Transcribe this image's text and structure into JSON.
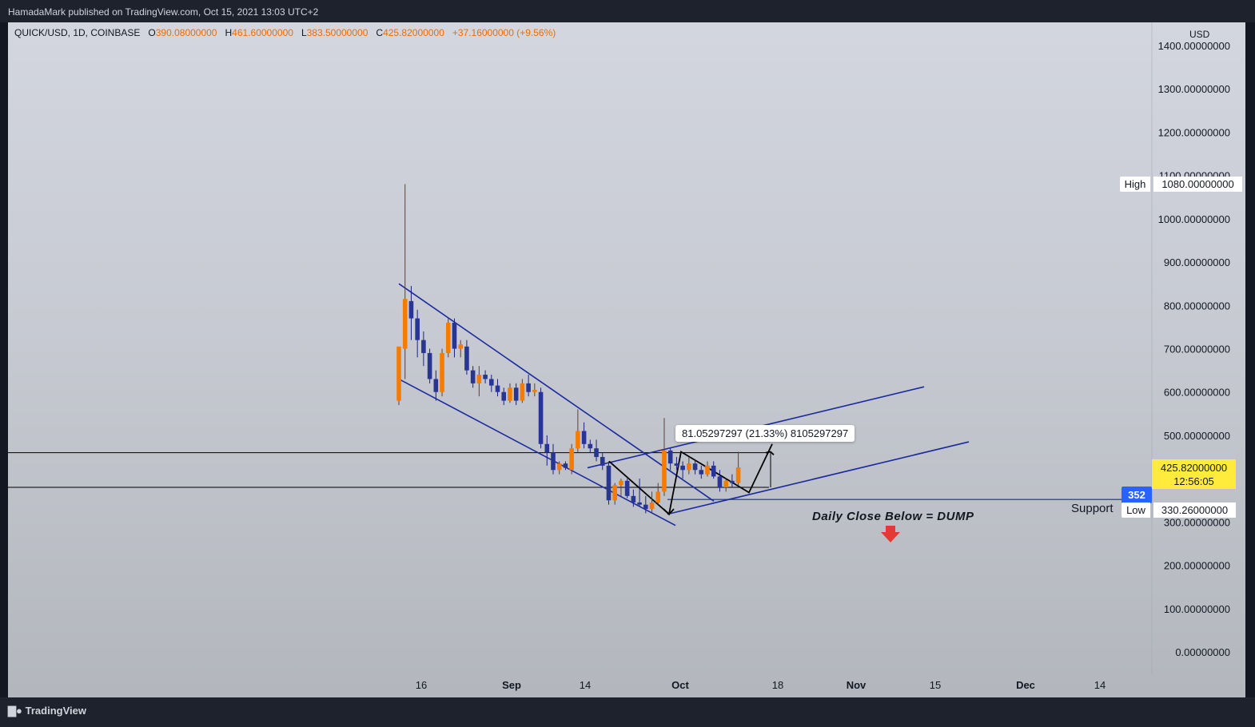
{
  "header": {
    "published": "HamadaMark published on TradingView.com, Oct 15, 2021 13:03 UTC+2"
  },
  "legend": {
    "symbol": "QUICK/USD, 1D, COINBASE",
    "o_label": "O",
    "o": "390.08000000",
    "h_label": "H",
    "h": "461.60000000",
    "l_label": "L",
    "l": "383.50000000",
    "c_label": "C",
    "c": "425.82000000",
    "change": "+37.16000000 (+9.56%)"
  },
  "axis": {
    "currency": "USD",
    "price_ticks": [
      "1400.00000000",
      "1300.00000000",
      "1200.00000000",
      "1100.00000000",
      "1000.00000000",
      "900.00000000",
      "800.00000000",
      "700.00000000",
      "600.00000000",
      "500.00000000",
      "300.00000000",
      "200.00000000",
      "100.00000000",
      "0.00000000"
    ],
    "time_ticks": [
      "16",
      "Sep",
      "14",
      "Oct",
      "18",
      "Nov",
      "15",
      "Dec",
      "14"
    ]
  },
  "tags": {
    "high_label": "High",
    "high_value": "1080.00000000",
    "price_value": "425.82000000",
    "countdown": "12:56:05",
    "low_label": "Low",
    "low_value": "330.26000000",
    "support_value": "352"
  },
  "annotations": {
    "support": "Support",
    "daily_close": "Daily Close Below = DUMP",
    "measure": "81.05297297 (21.33%) 8105297297"
  },
  "colors": {
    "up": "#f57c00",
    "down": "#283593",
    "trendline": "#1a2a9e",
    "accent": "#2962ff",
    "arrow": "#e53935"
  },
  "footer": {
    "brand": "TradingView"
  },
  "chart_data": {
    "type": "candlestick",
    "symbol": "QUICK/USD",
    "interval": "1D",
    "currency": "USD",
    "ylim": [
      0,
      1400
    ],
    "start_date": "2021-08-13",
    "candles": [
      {
        "o": 580,
        "h": 700,
        "l": 570,
        "c": 705
      },
      {
        "o": 700,
        "h": 1080,
        "l": 630,
        "c": 815
      },
      {
        "o": 810,
        "h": 845,
        "l": 720,
        "c": 770
      },
      {
        "o": 770,
        "h": 790,
        "l": 680,
        "c": 720
      },
      {
        "o": 720,
        "h": 740,
        "l": 660,
        "c": 690
      },
      {
        "o": 690,
        "h": 700,
        "l": 620,
        "c": 630
      },
      {
        "o": 630,
        "h": 650,
        "l": 580,
        "c": 600
      },
      {
        "o": 600,
        "h": 700,
        "l": 590,
        "c": 690
      },
      {
        "o": 690,
        "h": 770,
        "l": 680,
        "c": 760
      },
      {
        "o": 760,
        "h": 770,
        "l": 680,
        "c": 700
      },
      {
        "o": 700,
        "h": 720,
        "l": 680,
        "c": 710
      },
      {
        "o": 705,
        "h": 720,
        "l": 640,
        "c": 650
      },
      {
        "o": 650,
        "h": 660,
        "l": 610,
        "c": 620
      },
      {
        "o": 620,
        "h": 660,
        "l": 590,
        "c": 640
      },
      {
        "o": 640,
        "h": 650,
        "l": 620,
        "c": 630
      },
      {
        "o": 630,
        "h": 640,
        "l": 600,
        "c": 615
      },
      {
        "o": 615,
        "h": 630,
        "l": 590,
        "c": 600
      },
      {
        "o": 600,
        "h": 610,
        "l": 570,
        "c": 580
      },
      {
        "o": 580,
        "h": 620,
        "l": 575,
        "c": 610
      },
      {
        "o": 610,
        "h": 620,
        "l": 570,
        "c": 580
      },
      {
        "o": 580,
        "h": 630,
        "l": 575,
        "c": 620
      },
      {
        "o": 620,
        "h": 640,
        "l": 590,
        "c": 600
      },
      {
        "o": 600,
        "h": 620,
        "l": 590,
        "c": 605
      },
      {
        "o": 600,
        "h": 610,
        "l": 470,
        "c": 480
      },
      {
        "o": 480,
        "h": 500,
        "l": 430,
        "c": 460
      },
      {
        "o": 460,
        "h": 480,
        "l": 410,
        "c": 420
      },
      {
        "o": 420,
        "h": 440,
        "l": 410,
        "c": 435
      },
      {
        "o": 435,
        "h": 440,
        "l": 420,
        "c": 425
      },
      {
        "o": 420,
        "h": 480,
        "l": 410,
        "c": 470
      },
      {
        "o": 470,
        "h": 560,
        "l": 460,
        "c": 510
      },
      {
        "o": 510,
        "h": 530,
        "l": 470,
        "c": 480
      },
      {
        "o": 480,
        "h": 490,
        "l": 460,
        "c": 470
      },
      {
        "o": 470,
        "h": 490,
        "l": 440,
        "c": 450
      },
      {
        "o": 450,
        "h": 460,
        "l": 420,
        "c": 430
      },
      {
        "o": 430,
        "h": 440,
        "l": 340,
        "c": 350
      },
      {
        "o": 350,
        "h": 390,
        "l": 340,
        "c": 385
      },
      {
        "o": 385,
        "h": 400,
        "l": 360,
        "c": 395
      },
      {
        "o": 395,
        "h": 400,
        "l": 355,
        "c": 360
      },
      {
        "o": 360,
        "h": 375,
        "l": 335,
        "c": 345
      },
      {
        "o": 345,
        "h": 400,
        "l": 335,
        "c": 340
      },
      {
        "o": 340,
        "h": 360,
        "l": 320,
        "c": 330
      },
      {
        "o": 330,
        "h": 370,
        "l": 320,
        "c": 345
      },
      {
        "o": 345,
        "h": 390,
        "l": 340,
        "c": 370
      },
      {
        "o": 370,
        "h": 540,
        "l": 360,
        "c": 465
      },
      {
        "o": 465,
        "h": 470,
        "l": 420,
        "c": 435
      },
      {
        "o": 435,
        "h": 450,
        "l": 420,
        "c": 430
      },
      {
        "o": 430,
        "h": 440,
        "l": 400,
        "c": 420
      },
      {
        "o": 420,
        "h": 450,
        "l": 410,
        "c": 435
      },
      {
        "o": 435,
        "h": 445,
        "l": 410,
        "c": 420
      },
      {
        "o": 420,
        "h": 430,
        "l": 400,
        "c": 410
      },
      {
        "o": 410,
        "h": 440,
        "l": 405,
        "c": 430
      },
      {
        "o": 430,
        "h": 440,
        "l": 400,
        "c": 405
      },
      {
        "o": 405,
        "h": 420,
        "l": 370,
        "c": 380
      },
      {
        "o": 380,
        "h": 400,
        "l": 370,
        "c": 395
      },
      {
        "o": 395,
        "h": 410,
        "l": 380,
        "c": 390
      },
      {
        "o": 390,
        "h": 462,
        "l": 384,
        "c": 426
      }
    ],
    "levels": [
      {
        "name": "resistance",
        "price": 460
      },
      {
        "name": "support",
        "price": 380
      },
      {
        "name": "support_line",
        "price": 352
      }
    ]
  }
}
